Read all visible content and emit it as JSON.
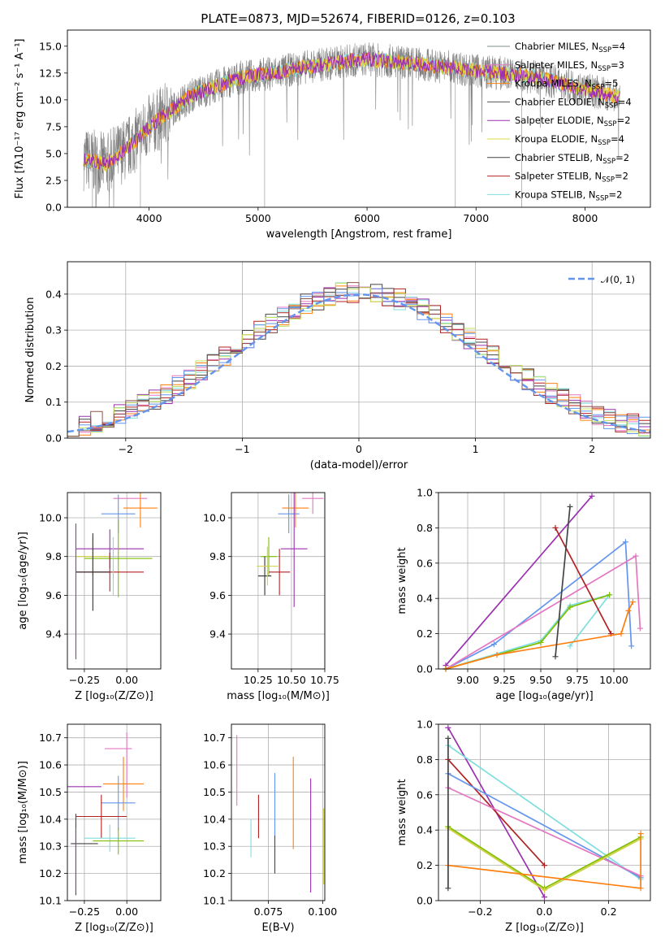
{
  "title": "PLATE=0873, MJD=52674, FIBERID=0126, z=0.103",
  "colors": [
    "#1f77b4",
    "#ff7f0e",
    "#2ca02c",
    "#d62728",
    "#9467bd",
    "#8c564b",
    "#e377c2",
    "#7f7f7f",
    "#bcbd22",
    "#17becf"
  ],
  "chart_data": [
    {
      "id": "spectrum",
      "type": "line",
      "xlabel": "wavelength [Angstrom, rest frame]",
      "ylabel": "Flux [fλ10⁻¹⁷ erg cm⁻² s⁻¹ A⁻¹]",
      "xlim": [
        3250,
        8600
      ],
      "ylim": [
        0,
        16.5
      ],
      "xticks": [
        "4000",
        "5000",
        "6000",
        "7000",
        "8000"
      ],
      "xtick_values": [
        4000,
        5000,
        6000,
        7000,
        8000
      ],
      "yticks": [
        "0.0",
        "2.5",
        "5.0",
        "7.5",
        "10.0",
        "12.5",
        "15.0"
      ],
      "ytick_values": [
        0,
        2.5,
        5,
        7.5,
        10,
        12.5,
        15
      ],
      "data_range": [
        3400,
        8320
      ],
      "continuum": [
        [
          3400,
          4.5
        ],
        [
          3600,
          4.0
        ],
        [
          3800,
          5.5
        ],
        [
          4000,
          7.5
        ],
        [
          4200,
          9.0
        ],
        [
          4400,
          10.5
        ],
        [
          4600,
          11.2
        ],
        [
          4800,
          12.0
        ],
        [
          5000,
          12.3
        ],
        [
          5200,
          12.6
        ],
        [
          5400,
          13.0
        ],
        [
          5600,
          13.3
        ],
        [
          5800,
          13.6
        ],
        [
          6000,
          13.8
        ],
        [
          6200,
          13.6
        ],
        [
          6400,
          13.4
        ],
        [
          6600,
          13.2
        ],
        [
          6800,
          13.0
        ],
        [
          7000,
          12.7
        ],
        [
          7200,
          12.5
        ],
        [
          7400,
          12.3
        ],
        [
          7600,
          12.0
        ],
        [
          7800,
          11.5
        ],
        [
          8000,
          11.0
        ],
        [
          8200,
          10.5
        ],
        [
          8320,
          10.3
        ]
      ],
      "legend": [
        {
          "label": "Chabrier MILES, N",
          "sub": "SSP",
          "suffix": "=4",
          "color": "#7f8c8d"
        },
        {
          "label": "Salpeter MILES, N",
          "sub": "SSP",
          "suffix": "=3",
          "color": "#e377c2"
        },
        {
          "label": "Kroupa MILES, N",
          "sub": "SSP",
          "suffix": "=5",
          "color": "#ff7f0e"
        },
        {
          "label": "Chabrier ELODIE, N",
          "sub": "SSP",
          "suffix": "=4",
          "color": "#555555"
        },
        {
          "label": "Salpeter ELODIE, N",
          "sub": "SSP",
          "suffix": "=2",
          "color": "#9b30b0"
        },
        {
          "label": "Kroupa ELODIE, N",
          "sub": "SSP",
          "suffix": "=4",
          "color": "#dcdc40"
        },
        {
          "label": "Chabrier STELIB, N",
          "sub": "SSP",
          "suffix": "=2",
          "color": "#444444"
        },
        {
          "label": "Salpeter STELIB, N",
          "sub": "SSP",
          "suffix": "=2",
          "color": "#b22222"
        },
        {
          "label": "Kroupa STELIB, N",
          "sub": "SSP",
          "suffix": "=2",
          "color": "#7fdede"
        }
      ]
    },
    {
      "id": "residuals",
      "type": "bar",
      "xlabel": "(data-model)/error",
      "ylabel": "Normed distribution",
      "xlim": [
        -2.5,
        2.5
      ],
      "ylim": [
        0,
        0.49
      ],
      "xticks": [
        "−2",
        "−1",
        "0",
        "1",
        "2"
      ],
      "xtick_values": [
        -2,
        -1,
        0,
        1,
        2
      ],
      "yticks": [
        "0.0",
        "0.1",
        "0.2",
        "0.3",
        "0.4"
      ],
      "ytick_values": [
        0,
        0.1,
        0.2,
        0.3,
        0.4
      ],
      "bin_width": 0.1,
      "legend_label": "𝒩(0, 1)",
      "normal_color": "#6495ed"
    },
    {
      "id": "age_vs_z",
      "type": "scatter",
      "xlabel": "Z [log₁₀(Z/Z⊙)]",
      "ylabel": "age  [log₁₀(age/yr)]",
      "xlim": [
        -0.35,
        0.2
      ],
      "ylim": [
        9.22,
        10.13
      ],
      "xticks": [
        "−0.25",
        "0.00"
      ],
      "xtick_values": [
        -0.25,
        0
      ],
      "yticks": [
        "9.4",
        "9.6",
        "9.8",
        "10.0"
      ],
      "ytick_values": [
        9.4,
        9.6,
        9.8,
        10.0
      ],
      "crosses": [
        {
          "x": 0.02,
          "y": 10.1,
          "xe": 0.1,
          "ye": 0.0,
          "c": "#e377c2"
        },
        {
          "x": 0.08,
          "y": 10.05,
          "xe": 0.1,
          "ye": 0.1,
          "c": "#ff7f0e"
        },
        {
          "x": -0.05,
          "y": 10.02,
          "xe": 0.1,
          "ye": 0.1,
          "c": "#6495ed"
        },
        {
          "x": -0.1,
          "y": 9.84,
          "xe": 0.2,
          "ye": 0.1,
          "c": "#9b30b0"
        },
        {
          "x": -0.05,
          "y": 9.79,
          "xe": 0.2,
          "ye": 0.2,
          "c": "#7fbf00"
        },
        {
          "x": -0.2,
          "y": 9.8,
          "xe": 0.1,
          "ye": 0.1,
          "c": "#d0d040"
        },
        {
          "x": -0.1,
          "y": 9.72,
          "xe": 0.2,
          "ye": 0.1,
          "c": "#b22222"
        },
        {
          "x": -0.2,
          "y": 9.72,
          "xe": 0.1,
          "ye": 0.2,
          "c": "#333333"
        },
        {
          "x": -0.3,
          "y": 9.62,
          "xe": 0.0,
          "ye": 0.35,
          "c": "#9b30b0"
        },
        {
          "x": -0.08,
          "y": 9.75,
          "xe": 0.0,
          "ye": 0.15,
          "c": "#7fdede"
        }
      ]
    },
    {
      "id": "age_vs_mass",
      "type": "scatter",
      "xlabel": "mass [log₁₀(M/M⊙)]",
      "ylabel": "",
      "xlim": [
        10.05,
        10.75
      ],
      "ylim": [
        9.22,
        10.13
      ],
      "xticks": [
        "10.25",
        "10.50",
        "10.75"
      ],
      "xtick_values": [
        10.25,
        10.5,
        10.75
      ],
      "yticks": [
        "9.4",
        "9.6",
        "9.8",
        "10.0"
      ],
      "ytick_values": [
        9.4,
        9.6,
        9.8,
        10.0
      ],
      "crosses": [
        {
          "x": 10.66,
          "y": 10.1,
          "xe": 0.08,
          "ye": 0.08,
          "c": "#e377c2"
        },
        {
          "x": 10.53,
          "y": 10.05,
          "xe": 0.1,
          "ye": 0.1,
          "c": "#ff7f0e"
        },
        {
          "x": 10.48,
          "y": 10.02,
          "xe": 0.08,
          "ye": 0.1,
          "c": "#6495ed"
        },
        {
          "x": 10.52,
          "y": 9.84,
          "xe": 0.1,
          "ye": 0.3,
          "c": "#9b30b0"
        },
        {
          "x": 10.33,
          "y": 9.8,
          "xe": 0.06,
          "ye": 0.1,
          "c": "#7fbf00"
        },
        {
          "x": 10.41,
          "y": 9.72,
          "xe": 0.08,
          "ye": 0.12,
          "c": "#b22222"
        },
        {
          "x": 10.3,
          "y": 9.7,
          "xe": 0.05,
          "ye": 0.1,
          "c": "#333333"
        },
        {
          "x": 10.32,
          "y": 9.75,
          "xe": 0.08,
          "ye": 0.1,
          "c": "#d0d040"
        }
      ]
    },
    {
      "id": "mass_weight_vs_age",
      "type": "line",
      "xlabel": "age  [log₁₀(age/yr)]",
      "ylabel": "mass weight",
      "xlim": [
        8.8,
        10.25
      ],
      "ylim": [
        0,
        1.0
      ],
      "xticks": [
        "9.00",
        "9.25",
        "9.50",
        "9.75",
        "10.00"
      ],
      "xtick_values": [
        9,
        9.25,
        9.5,
        9.75,
        10
      ],
      "yticks": [
        "0.0",
        "0.2",
        "0.4",
        "0.6",
        "0.8",
        "1.0"
      ],
      "ytick_values": [
        0,
        0.2,
        0.4,
        0.6,
        0.8,
        1.0
      ],
      "series": [
        {
          "c": "#9b30b0",
          "pts": [
            [
              8.85,
              0.02
            ],
            [
              9.85,
              0.98
            ]
          ]
        },
        {
          "c": "#6495ed",
          "pts": [
            [
              8.85,
              0.0
            ],
            [
              9.18,
              0.14
            ],
            [
              10.08,
              0.72
            ],
            [
              10.12,
              0.13
            ]
          ]
        },
        {
          "c": "#e377c2",
          "pts": [
            [
              8.85,
              0.0
            ],
            [
              10.15,
              0.64
            ],
            [
              10.18,
              0.23
            ]
          ]
        },
        {
          "c": "#7fdede",
          "pts": [
            [
              8.85,
              0.0
            ],
            [
              9.5,
              0.16
            ],
            [
              9.7,
              0.36
            ],
            [
              9.97,
              0.42
            ],
            [
              9.7,
              0.13
            ]
          ]
        },
        {
          "c": "#7fbf00",
          "pts": [
            [
              8.85,
              0.0
            ],
            [
              9.5,
              0.15
            ],
            [
              9.7,
              0.35
            ],
            [
              9.97,
              0.42
            ]
          ]
        },
        {
          "c": "#b22222",
          "pts": [
            [
              9.6,
              0.8
            ],
            [
              9.98,
              0.2
            ]
          ]
        },
        {
          "c": "#ff7f0e",
          "pts": [
            [
              8.85,
              0.0
            ],
            [
              9.2,
              0.08
            ],
            [
              10.05,
              0.2
            ],
            [
              10.1,
              0.33
            ],
            [
              10.13,
              0.38
            ]
          ]
        },
        {
          "c": "#444444",
          "pts": [
            [
              9.6,
              0.07
            ],
            [
              9.7,
              0.92
            ]
          ]
        }
      ]
    },
    {
      "id": "mass_vs_z",
      "type": "scatter",
      "xlabel": "Z [log₁₀(Z/Z⊙)]",
      "ylabel": "mass [log₁₀(M/M⊙)]",
      "xlim": [
        -0.35,
        0.2
      ],
      "ylim": [
        10.1,
        10.75
      ],
      "xticks": [
        "−0.25",
        "0.00"
      ],
      "xtick_values": [
        -0.25,
        0
      ],
      "yticks": [
        "10.1",
        "10.2",
        "10.3",
        "10.4",
        "10.5",
        "10.6",
        "10.7"
      ],
      "ytick_values": [
        10.1,
        10.2,
        10.3,
        10.4,
        10.5,
        10.6,
        10.7
      ],
      "crosses": [
        {
          "x": -0.05,
          "y": 10.66,
          "xe": 0.08,
          "ye": 0.0,
          "c": "#e377c2"
        },
        {
          "x": 0.0,
          "y": 10.6,
          "xe": 0.0,
          "ye": 0.12,
          "c": "#e377c2"
        },
        {
          "x": -0.02,
          "y": 10.53,
          "xe": 0.12,
          "ye": 0.1,
          "c": "#ff7f0e"
        },
        {
          "x": -0.25,
          "y": 10.52,
          "xe": 0.1,
          "ye": 0.0,
          "c": "#9b30b0"
        },
        {
          "x": -0.05,
          "y": 10.46,
          "xe": 0.1,
          "ye": 0.1,
          "c": "#6495ed"
        },
        {
          "x": -0.15,
          "y": 10.41,
          "xe": 0.15,
          "ye": 0.08,
          "c": "#b22222"
        },
        {
          "x": -0.1,
          "y": 10.33,
          "xe": 0.15,
          "ye": 0.05,
          "c": "#7fdede"
        },
        {
          "x": -0.05,
          "y": 10.32,
          "xe": 0.15,
          "ye": 0.05,
          "c": "#7fbf00"
        },
        {
          "x": -0.25,
          "y": 10.31,
          "xe": 0.08,
          "ye": 0.0,
          "c": "#444444"
        },
        {
          "x": -0.3,
          "y": 10.27,
          "xe": 0.0,
          "ye": 0.15,
          "c": "#444444"
        },
        {
          "x": -0.3,
          "y": 10.25,
          "xe": 0.0,
          "ye": 0.12,
          "c": "#9b30b0"
        }
      ]
    },
    {
      "id": "mass_vs_ebv",
      "type": "scatter",
      "xlabel": "E(B-V)",
      "ylabel": "",
      "xlim": [
        0.058,
        0.101
      ],
      "ylim": [
        10.1,
        10.75
      ],
      "xticks": [
        "0.075",
        "0.100"
      ],
      "xtick_values": [
        0.075,
        0.1
      ],
      "yticks": [
        "10.1",
        "10.2",
        "10.3",
        "10.4",
        "10.5",
        "10.6",
        "10.7"
      ],
      "ytick_values": [
        10.1,
        10.2,
        10.3,
        10.4,
        10.5,
        10.6,
        10.7
      ],
      "crosses": [
        {
          "x": 0.0605,
          "y": 10.58,
          "xe": 0,
          "ye": 0.13,
          "c": "#e377c2"
        },
        {
          "x": 0.067,
          "y": 10.33,
          "xe": 0,
          "ye": 0.07,
          "c": "#7fdede"
        },
        {
          "x": 0.0705,
          "y": 10.41,
          "xe": 0,
          "ye": 0.08,
          "c": "#b22222"
        },
        {
          "x": 0.078,
          "y": 10.45,
          "xe": 0,
          "ye": 0.12,
          "c": "#6495ed"
        },
        {
          "x": 0.078,
          "y": 10.27,
          "xe": 0,
          "ye": 0.07,
          "c": "#444444"
        },
        {
          "x": 0.0865,
          "y": 10.46,
          "xe": 0,
          "ye": 0.17,
          "c": "#ff7f0e"
        },
        {
          "x": 0.0945,
          "y": 10.34,
          "xe": 0,
          "ye": 0.21,
          "c": "#9b30b0"
        },
        {
          "x": 0.1005,
          "y": 10.3,
          "xe": 0,
          "ye": 0.14,
          "c": "#d0d040"
        }
      ]
    },
    {
      "id": "mass_weight_vs_z",
      "type": "line",
      "xlabel": "Z [log₁₀(Z/Z⊙)]",
      "ylabel": "mass weight",
      "xlim": [
        -0.33,
        0.33
      ],
      "ylim": [
        0,
        1.0
      ],
      "xticks": [
        "−0.2",
        "0.0",
        "0.2"
      ],
      "xtick_values": [
        -0.2,
        0,
        0.2
      ],
      "yticks": [
        "0.0",
        "0.2",
        "0.4",
        "0.6",
        "0.8",
        "1.0"
      ],
      "ytick_values": [
        0,
        0.2,
        0.4,
        0.6,
        0.8,
        1.0
      ],
      "series": [
        {
          "c": "#9b30b0",
          "pts": [
            [
              -0.3,
              0.98
            ],
            [
              0.0,
              0.02
            ]
          ]
        },
        {
          "c": "#7fdede",
          "pts": [
            [
              -0.3,
              0.88
            ],
            [
              0.3,
              0.12
            ]
          ]
        },
        {
          "c": "#b22222",
          "pts": [
            [
              -0.3,
              0.8
            ],
            [
              0.0,
              0.2
            ]
          ]
        },
        {
          "c": "#6495ed",
          "pts": [
            [
              -0.3,
              0.72
            ],
            [
              0.3,
              0.13
            ]
          ]
        },
        {
          "c": "#e377c2",
          "pts": [
            [
              -0.3,
              0.64
            ],
            [
              0.3,
              0.14
            ]
          ]
        },
        {
          "c": "#7fbf00",
          "pts": [
            [
              -0.3,
              0.42
            ],
            [
              0.0,
              0.07
            ],
            [
              0.3,
              0.36
            ]
          ]
        },
        {
          "c": "#d0d040",
          "pts": [
            [
              -0.3,
              0.41
            ],
            [
              0.0,
              0.06
            ],
            [
              0.3,
              0.35
            ]
          ]
        },
        {
          "c": "#ff7f0e",
          "pts": [
            [
              -0.3,
              0.2
            ],
            [
              0.3,
              0.07
            ],
            [
              0.3,
              0.38
            ]
          ]
        },
        {
          "c": "#444444",
          "pts": [
            [
              -0.3,
              0.92
            ],
            [
              -0.3,
              0.07
            ]
          ]
        }
      ]
    }
  ]
}
